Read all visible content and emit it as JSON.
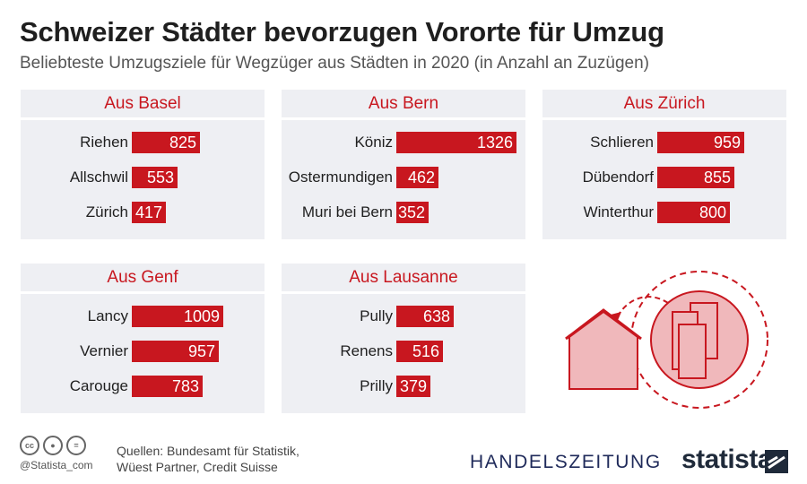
{
  "title": "Schweizer Städter bevorzugen Vororte für Umzug",
  "subtitle": "Beliebteste Umzugsziele für Wegzüger aus Städten in 2020 (in Anzahl an Zuzügen)",
  "colors": {
    "bar": "#c8171f",
    "panel_bg": "#eeeff3",
    "header": "#c8171f",
    "icon_fill": "#f0b8bb",
    "icon_stroke": "#c8171f"
  },
  "chart_data": [
    {
      "type": "bar",
      "title": "Aus Basel",
      "categories": [
        "Riehen",
        "Allschwil",
        "Zürich"
      ],
      "values": [
        825,
        553,
        417
      ]
    },
    {
      "type": "bar",
      "title": "Aus Bern",
      "categories": [
        "Köniz",
        "Ostermundigen",
        "Muri bei Bern"
      ],
      "values": [
        1326,
        462,
        352
      ]
    },
    {
      "type": "bar",
      "title": "Aus Zürich",
      "categories": [
        "Schlieren",
        "Dübendorf",
        "Winterthur"
      ],
      "values": [
        959,
        855,
        800
      ]
    },
    {
      "type": "bar",
      "title": "Aus Genf",
      "categories": [
        "Lancy",
        "Vernier",
        "Carouge"
      ],
      "values": [
        1009,
        957,
        783
      ]
    },
    {
      "type": "bar",
      "title": "Aus Lausanne",
      "categories": [
        "Pully",
        "Renens",
        "Prilly"
      ],
      "values": [
        638,
        516,
        379
      ]
    }
  ],
  "footer": {
    "license_icons": [
      "cc",
      "by",
      "="
    ],
    "handle": "@Statista_com",
    "sources_line1": "Quellen: Bundesamt für Statistik,",
    "sources_line2": "Wüest Partner, Credit Suisse",
    "partner": "HANDELSZEITUNG",
    "brand": "statista"
  }
}
